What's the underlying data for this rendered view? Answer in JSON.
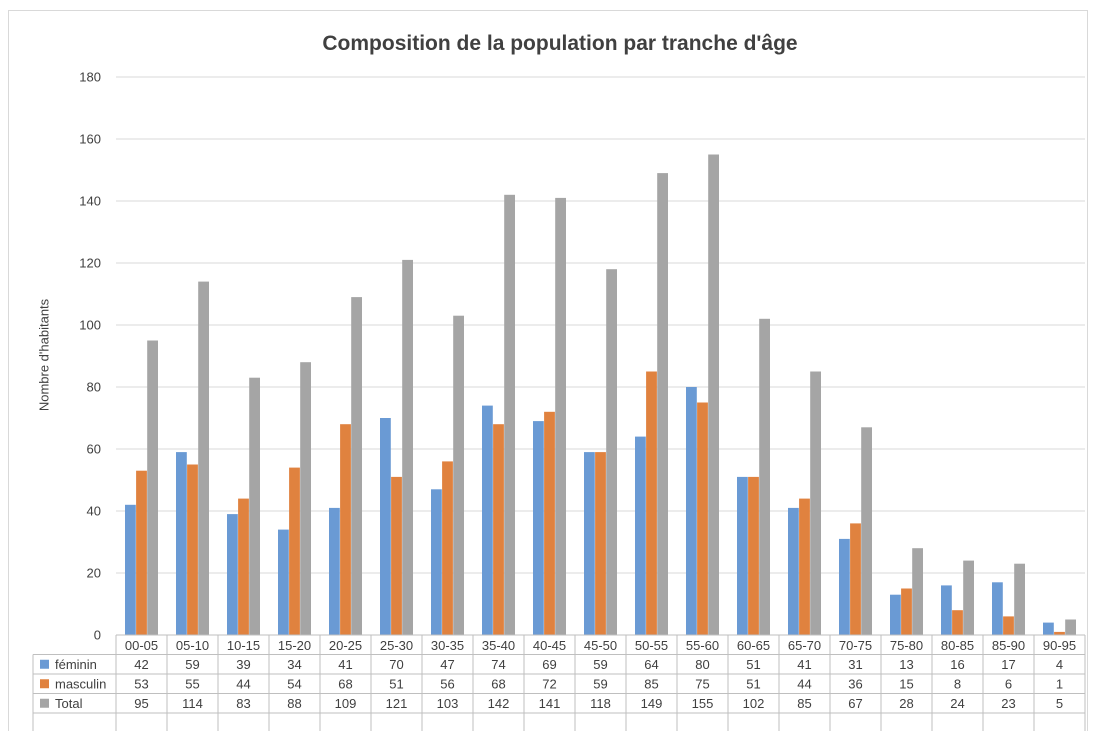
{
  "chart_data": {
    "type": "bar",
    "title": "Composition de la population par tranche d'âge",
    "xlabel": "",
    "ylabel": "Nombre d'habitants",
    "ylim": [
      0,
      180
    ],
    "yticks": [
      "0",
      "20",
      "40",
      "60",
      "80",
      "100",
      "120",
      "140",
      "160",
      "180"
    ],
    "grid": true,
    "legend": "data-table",
    "categories": [
      "00-05",
      "05-10",
      "10-15",
      "15-20",
      "20-25",
      "25-30",
      "30-35",
      "35-40",
      "40-45",
      "45-50",
      "50-55",
      "55-60",
      "60-65",
      "65-70",
      "70-75",
      "75-80",
      "80-85",
      "85-90",
      "90-95"
    ],
    "series": [
      {
        "name": "féminin",
        "color": "#6a9ad4",
        "values": [
          42,
          59,
          39,
          34,
          41,
          70,
          47,
          74,
          69,
          59,
          64,
          80,
          51,
          41,
          31,
          13,
          16,
          17,
          4
        ]
      },
      {
        "name": "masculin",
        "color": "#e0823f",
        "values": [
          53,
          55,
          44,
          54,
          68,
          51,
          56,
          68,
          72,
          59,
          85,
          75,
          51,
          44,
          36,
          15,
          8,
          6,
          1
        ]
      },
      {
        "name": "Total",
        "color": "#a5a5a5",
        "values": [
          95,
          114,
          83,
          88,
          109,
          121,
          103,
          142,
          141,
          118,
          149,
          155,
          102,
          85,
          67,
          28,
          24,
          23,
          5
        ]
      }
    ]
  }
}
